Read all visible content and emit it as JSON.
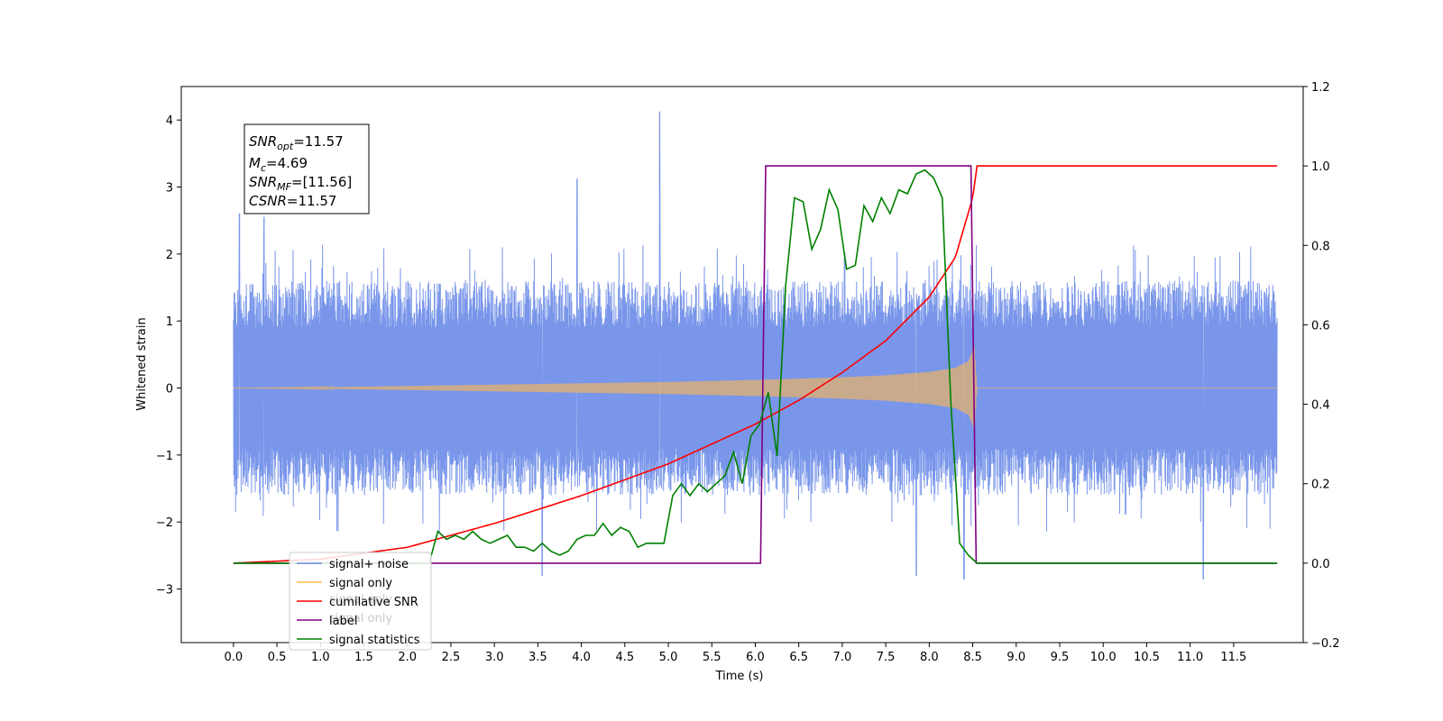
{
  "chart_data": {
    "type": "line",
    "xlabel": "Time (s)",
    "ylabel": "Whitened strain",
    "xlim": [
      -0.6,
      12.3
    ],
    "ylim": [
      -3.8,
      4.5
    ],
    "y2lim": [
      -0.2,
      1.2
    ],
    "xticks": [
      "0.0",
      "0.5",
      "1.0",
      "1.5",
      "2.0",
      "2.5",
      "3.0",
      "3.5",
      "4.0",
      "4.5",
      "5.0",
      "5.5",
      "6.0",
      "6.5",
      "7.0",
      "7.5",
      "8.0",
      "8.5",
      "9.0",
      "9.5",
      "10.0",
      "10.5",
      "11.0",
      "11.5"
    ],
    "yticks": [
      "−3",
      "−2",
      "−1",
      "0",
      "1",
      "2",
      "3",
      "4"
    ],
    "y2ticks": [
      "−0.2",
      "0.0",
      "0.2",
      "0.4",
      "0.6",
      "0.8",
      "1.0",
      "1.2"
    ],
    "legend_position": "lower-left",
    "annotation": {
      "lines": [
        {
          "base": "SNR",
          "sub": "opt",
          "rest": "=11.57"
        },
        {
          "base": "M",
          "sub": "c",
          "rest": "=4.69"
        },
        {
          "base": "SNR",
          "sub": "MF",
          "rest": "=[11.56]"
        },
        {
          "base": "CSNR",
          "sub": "",
          "rest": "=11.57"
        }
      ]
    },
    "series": [
      {
        "name": "signal+ noise",
        "color": "#6a8be8",
        "axis": "left",
        "x_range": [
          0.0,
          12.0
        ],
        "noise_band": [
          -1.5,
          1.6
        ],
        "peak_spikes": [
          [
            0.07,
            2.6
          ],
          [
            0.35,
            2.55
          ],
          [
            4.9,
            4.12
          ],
          [
            3.95,
            3.12
          ],
          [
            3.55,
            -2.8
          ],
          [
            11.15,
            -2.85
          ],
          [
            8.4,
            -2.85
          ],
          [
            7.85,
            -2.8
          ]
        ]
      },
      {
        "name": "signal only",
        "color": "#ffb84d",
        "axis": "left",
        "x": [
          0.0,
          1.0,
          2.0,
          3.0,
          4.0,
          5.0,
          6.0,
          6.5,
          7.0,
          7.5,
          8.0,
          8.3,
          8.45,
          8.52,
          8.55,
          12.0
        ],
        "envelope": [
          0.0,
          0.01,
          0.03,
          0.05,
          0.07,
          0.09,
          0.12,
          0.14,
          0.16,
          0.19,
          0.24,
          0.3,
          0.4,
          0.62,
          0.0,
          0.0
        ]
      },
      {
        "name": "cumilative SNR",
        "color": "#ff0000",
        "axis": "right",
        "x": [
          0.0,
          1.0,
          2.0,
          3.0,
          4.0,
          5.0,
          6.0,
          6.5,
          7.0,
          7.5,
          8.0,
          8.3,
          8.5,
          8.55,
          12.0
        ],
        "values": [
          0.0,
          0.01,
          0.04,
          0.1,
          0.17,
          0.25,
          0.35,
          0.41,
          0.48,
          0.56,
          0.67,
          0.77,
          0.92,
          1.0,
          1.0
        ]
      },
      {
        "name": "label",
        "color": "#800080",
        "axis": "right",
        "x": [
          0.0,
          6.06,
          6.12,
          8.48,
          8.54,
          12.0
        ],
        "values": [
          0.0,
          0.0,
          1.0,
          1.0,
          0.0,
          0.0
        ]
      },
      {
        "name": "signal statistics",
        "color": "#008000",
        "axis": "right",
        "x": [
          0.0,
          2.25,
          2.35,
          2.45,
          2.55,
          2.65,
          2.75,
          2.85,
          2.95,
          3.05,
          3.15,
          3.25,
          3.35,
          3.45,
          3.55,
          3.65,
          3.75,
          3.85,
          3.95,
          4.05,
          4.15,
          4.25,
          4.35,
          4.45,
          4.55,
          4.65,
          4.75,
          4.85,
          4.95,
          5.05,
          5.15,
          5.25,
          5.35,
          5.45,
          5.55,
          5.65,
          5.75,
          5.85,
          5.95,
          6.05,
          6.15,
          6.25,
          6.35,
          6.45,
          6.55,
          6.65,
          6.75,
          6.85,
          6.95,
          7.05,
          7.15,
          7.25,
          7.35,
          7.45,
          7.55,
          7.65,
          7.75,
          7.85,
          7.95,
          8.05,
          8.15,
          8.25,
          8.35,
          8.45,
          8.5,
          8.55,
          12.0
        ],
        "values": [
          0.0,
          0.0,
          0.08,
          0.06,
          0.07,
          0.06,
          0.08,
          0.06,
          0.05,
          0.06,
          0.07,
          0.04,
          0.04,
          0.03,
          0.05,
          0.03,
          0.02,
          0.03,
          0.06,
          0.07,
          0.07,
          0.1,
          0.07,
          0.09,
          0.08,
          0.04,
          0.05,
          0.05,
          0.05,
          0.17,
          0.2,
          0.17,
          0.2,
          0.18,
          0.2,
          0.22,
          0.28,
          0.2,
          0.32,
          0.35,
          0.43,
          0.27,
          0.7,
          0.92,
          0.91,
          0.79,
          0.84,
          0.94,
          0.89,
          0.74,
          0.75,
          0.9,
          0.86,
          0.92,
          0.88,
          0.94,
          0.93,
          0.98,
          0.99,
          0.97,
          0.92,
          0.4,
          0.05,
          0.02,
          0.01,
          0.0,
          0.0
        ]
      }
    ],
    "legend": [
      "signal+ noise",
      "signal only",
      "cumilative SNR",
      "label",
      "signal statistics"
    ],
    "legend_ghost_labels": [
      "signal only",
      "signal only"
    ]
  }
}
